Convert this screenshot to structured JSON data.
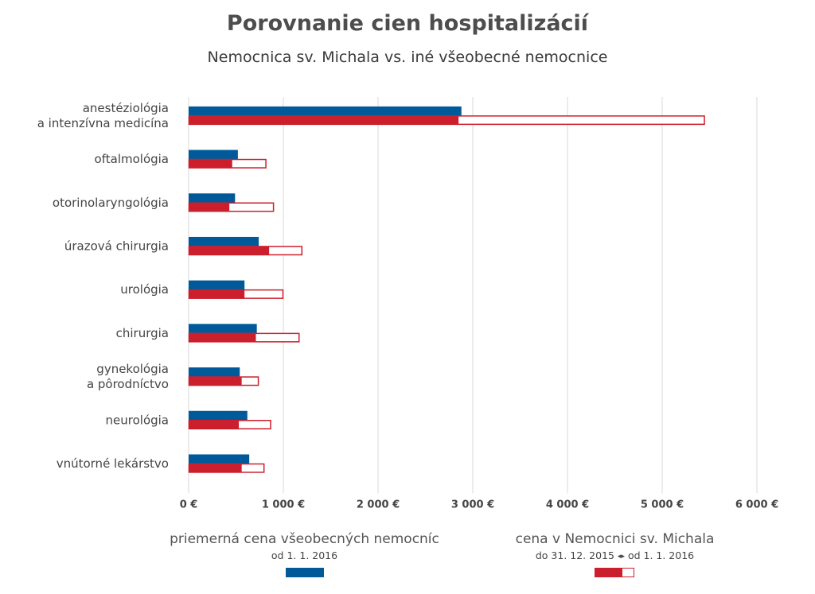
{
  "colors": {
    "general": "#005a9a",
    "michala": "#cc1f2d",
    "grid": "#d9d9d9",
    "outline": "#cc1f2d"
  },
  "chart_data": {
    "type": "bar",
    "orientation": "horizontal",
    "title": "Porovnanie cien hospitalizácií",
    "subtitle": "Nemocnica sv. Michala vs. iné všeobecné nemocnice",
    "categories": [
      [
        "anestéziológia",
        "a intenzívna medicína"
      ],
      [
        "oftalmológia"
      ],
      [
        "otorinolaryngológia"
      ],
      [
        "úrazová chirurgia"
      ],
      [
        "urológia"
      ],
      [
        "chirurgia"
      ],
      [
        "gynekológia",
        "a pôrodníctvo"
      ],
      [
        "neurológia"
      ],
      [
        "vnútorné lekárstvo"
      ]
    ],
    "series": [
      {
        "name": "priemerná cena všeobecných nemocníc",
        "values": [
          2880,
          520,
          490,
          740,
          590,
          720,
          540,
          620,
          640
        ]
      },
      {
        "name": "cena v Nemocnici sv. Michala do 31. 12. 2015",
        "values": [
          2850,
          460,
          430,
          850,
          590,
          710,
          560,
          530,
          560
        ]
      },
      {
        "name": "cena v Nemocnici sv. Michala od 1. 1. 2016",
        "values": [
          5450,
          820,
          900,
          1200,
          1000,
          1170,
          740,
          870,
          800
        ]
      }
    ],
    "xlim": [
      0,
      6000
    ],
    "xticks": [
      0,
      1000,
      2000,
      3000,
      4000,
      5000,
      6000
    ],
    "xtick_labels": [
      "0 €",
      "1 000 €",
      "2 000 €",
      "3 000 €",
      "4 000 €",
      "5 000 €",
      "6 000 €"
    ],
    "grid": true
  },
  "legend": {
    "general": {
      "title": "priemerná cena všeobecných nemocníc",
      "sub": "od 1. 1. 2016"
    },
    "michala": {
      "title": "cena v Nemocnici sv. Michala",
      "sub_before": "do 31. 12. 2015",
      "arrows": "◂▸",
      "sub_after": "od 1. 1. 2016"
    }
  }
}
